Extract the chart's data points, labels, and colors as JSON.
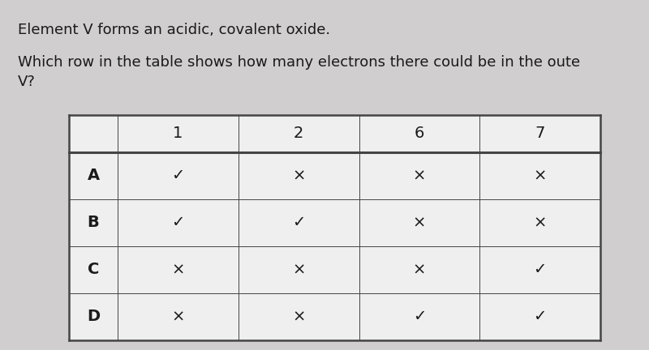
{
  "background_color": "#d0cece",
  "table_bg_color": "#f0efef",
  "text_color": "#1a1a1a",
  "line_color": "#444444",
  "title_line1": "Element V forms an acidic, covalent oxide.",
  "title_line2": "Which row in the table shows how many electrons there could be in the oute",
  "title_line3": "V?",
  "col_headers": [
    "",
    "1",
    "2",
    "6",
    "7"
  ],
  "row_labels": [
    "A",
    "B",
    "C",
    "D"
  ],
  "table_data": [
    [
      "✓",
      "×",
      "×",
      "×"
    ],
    [
      "✓",
      "✓",
      "×",
      "×"
    ],
    [
      "×",
      "×",
      "×",
      "✓"
    ],
    [
      "×",
      "×",
      "✓",
      "✓"
    ]
  ],
  "fig_width": 8.0,
  "fig_height": 4.32,
  "dpi": 100,
  "font_size_title": 13,
  "font_size_table": 14,
  "font_size_header": 14
}
